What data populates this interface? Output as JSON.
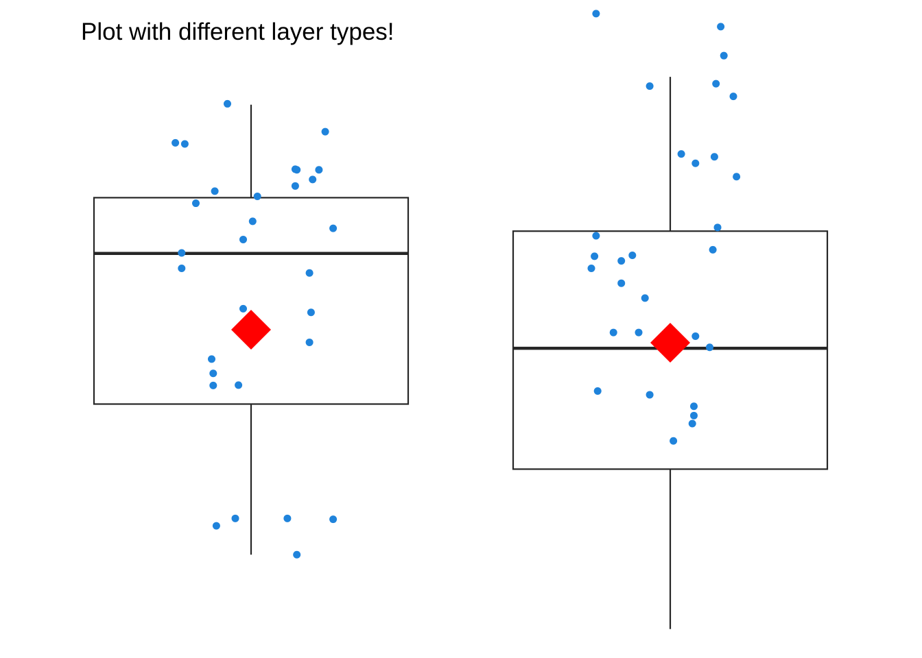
{
  "chart_data": {
    "type": "boxplot",
    "title": "Plot with different layer types!",
    "xlabel": "",
    "ylabel": "",
    "ylim": [
      -1.6,
      1.6
    ],
    "grid": false,
    "legend": "none",
    "colors": {
      "points": "#1f83db",
      "mean_marker": "#ff0000",
      "box_stroke": "#262626",
      "background": "#ffffff"
    },
    "groups": [
      {
        "stats": {
          "min": -1.21,
          "q1": -0.4,
          "median": 0.41,
          "q3": 0.71,
          "max": 1.21
        },
        "mean": 0.0,
        "points": [
          {
            "x": -0.15,
            "y": 1.215
          },
          {
            "x": 0.47,
            "y": 1.065
          },
          {
            "x": -0.48,
            "y": 1.005
          },
          {
            "x": -0.42,
            "y": 0.999
          },
          {
            "x": 0.28,
            "y": 0.863
          },
          {
            "x": 0.29,
            "y": 0.86
          },
          {
            "x": 0.43,
            "y": 0.86
          },
          {
            "x": 0.39,
            "y": 0.808
          },
          {
            "x": 0.28,
            "y": 0.773
          },
          {
            "x": -0.23,
            "y": 0.745
          },
          {
            "x": 0.04,
            "y": 0.717
          },
          {
            "x": -0.35,
            "y": 0.68
          },
          {
            "x": 0.01,
            "y": 0.583
          },
          {
            "x": 0.52,
            "y": 0.545
          },
          {
            "x": -0.05,
            "y": 0.485
          },
          {
            "x": -0.44,
            "y": 0.413
          },
          {
            "x": -0.44,
            "y": 0.33
          },
          {
            "x": 0.37,
            "y": 0.305
          },
          {
            "x": -0.05,
            "y": 0.113
          },
          {
            "x": 0.38,
            "y": 0.093
          },
          {
            "x": 0.37,
            "y": -0.068
          },
          {
            "x": -0.25,
            "y": -0.158
          },
          {
            "x": -0.24,
            "y": -0.235
          },
          {
            "x": -0.24,
            "y": -0.3
          },
          {
            "x": -0.08,
            "y": -0.298
          },
          {
            "x": -0.1,
            "y": -1.015
          },
          {
            "x": -0.22,
            "y": -1.055
          },
          {
            "x": 0.23,
            "y": -1.015
          },
          {
            "x": 0.52,
            "y": -1.02
          },
          {
            "x": 0.29,
            "y": -1.21
          }
        ]
      },
      {
        "stats": {
          "min": -1.61,
          "q1": -0.75,
          "median": -0.1,
          "q3": 0.53,
          "max": 1.36
        },
        "mean": -0.07,
        "points": [
          {
            "x": -0.47,
            "y": 1.7
          },
          {
            "x": 0.32,
            "y": 1.63
          },
          {
            "x": 0.34,
            "y": 1.474
          },
          {
            "x": -0.13,
            "y": 1.31
          },
          {
            "x": 0.29,
            "y": 1.323
          },
          {
            "x": 0.4,
            "y": 1.255
          },
          {
            "x": 0.07,
            "y": 0.945
          },
          {
            "x": 0.28,
            "y": 0.93
          },
          {
            "x": 0.16,
            "y": 0.895
          },
          {
            "x": 0.42,
            "y": 0.823
          },
          {
            "x": 0.3,
            "y": 0.55
          },
          {
            "x": -0.47,
            "y": 0.505
          },
          {
            "x": 0.27,
            "y": 0.43
          },
          {
            "x": -0.48,
            "y": 0.395
          },
          {
            "x": -0.24,
            "y": 0.4
          },
          {
            "x": -0.31,
            "y": 0.37
          },
          {
            "x": -0.5,
            "y": 0.33
          },
          {
            "x": -0.31,
            "y": 0.25
          },
          {
            "x": -0.16,
            "y": 0.17
          },
          {
            "x": -0.36,
            "y": -0.015
          },
          {
            "x": -0.2,
            "y": -0.015
          },
          {
            "x": 0.16,
            "y": -0.035
          },
          {
            "x": 0.25,
            "y": -0.095
          },
          {
            "x": -0.46,
            "y": -0.33
          },
          {
            "x": -0.13,
            "y": -0.35
          },
          {
            "x": 0.15,
            "y": -0.412
          },
          {
            "x": 0.15,
            "y": -0.462
          },
          {
            "x": 0.14,
            "y": -0.505
          },
          {
            "x": 0.02,
            "y": -0.598
          }
        ]
      }
    ]
  }
}
